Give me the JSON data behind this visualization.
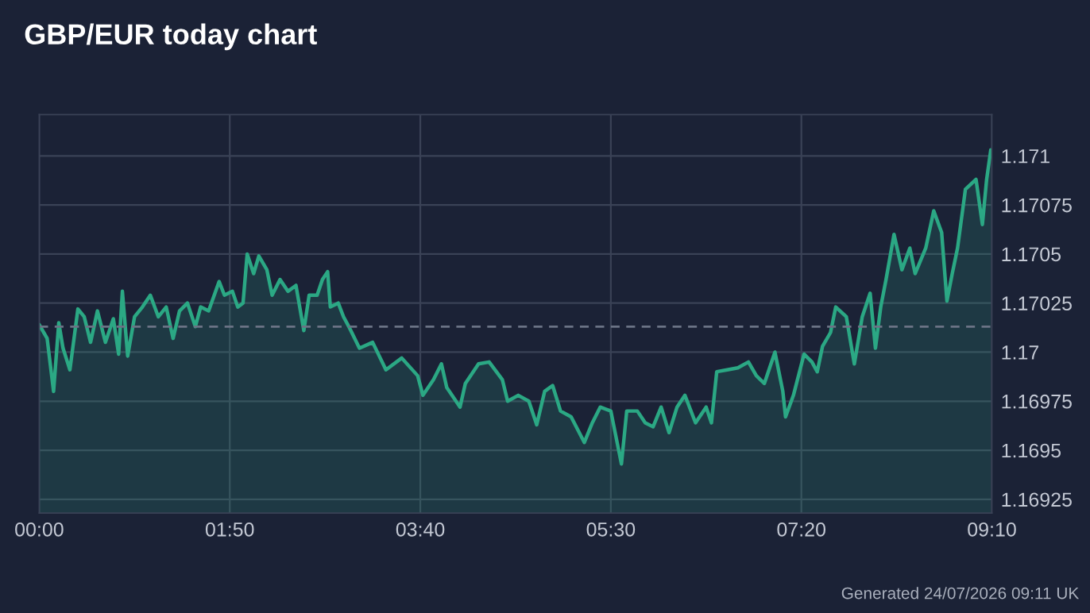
{
  "chart_data": {
    "type": "area",
    "title": "GBP/EUR today chart",
    "annotations": [
      "Generated 24/07/2026 09:11 UK"
    ],
    "x": [
      0.0,
      0.076,
      0.138,
      0.188,
      0.229,
      0.295,
      0.372,
      0.433,
      0.494,
      0.56,
      0.637,
      0.713,
      0.764,
      0.8,
      0.851,
      0.917,
      0.993,
      1.069,
      1.146,
      1.222,
      1.288,
      1.35,
      1.426,
      1.502,
      1.553,
      1.63,
      1.731,
      1.782,
      1.859,
      1.91,
      1.961,
      2.001,
      2.063,
      2.113,
      2.19,
      2.241,
      2.317,
      2.393,
      2.47,
      2.546,
      2.597,
      2.674,
      2.725,
      2.775,
      2.801,
      2.877,
      2.928,
      2.979,
      3.081,
      3.208,
      3.336,
      3.488,
      3.641,
      3.692,
      3.794,
      3.87,
      3.921,
      4.049,
      4.1,
      4.227,
      4.329,
      4.456,
      4.507,
      4.609,
      4.711,
      4.787,
      4.863,
      4.94,
      5.016,
      5.118,
      5.245,
      5.322,
      5.398,
      5.5,
      5.602,
      5.653,
      5.755,
      5.831,
      5.907,
      5.984,
      6.06,
      6.137,
      6.213,
      6.315,
      6.417,
      6.468,
      6.519,
      6.62,
      6.722,
      6.824,
      6.9,
      6.977,
      7.079,
      7.155,
      7.181,
      7.257,
      7.359,
      7.435,
      7.486,
      7.537,
      7.614,
      7.664,
      7.766,
      7.843,
      7.919,
      7.995,
      8.046,
      8.097,
      8.148,
      8.225,
      8.301,
      8.377,
      8.428,
      8.53,
      8.607,
      8.683,
      8.734,
      8.785,
      8.836,
      8.912,
      9.014,
      9.075,
      9.116,
      9.156
    ],
    "series": [
      {
        "color": "#2ba884",
        "values": [
          1.17014,
          1.17007,
          1.1698,
          1.17015,
          1.17002,
          1.16991,
          1.17022,
          1.17018,
          1.17005,
          1.17021,
          1.17005,
          1.17017,
          1.16999,
          1.17031,
          1.16998,
          1.17018,
          1.17023,
          1.17029,
          1.17018,
          1.17023,
          1.17007,
          1.17021,
          1.17025,
          1.17013,
          1.17023,
          1.17021,
          1.17036,
          1.17029,
          1.17031,
          1.17023,
          1.17025,
          1.1705,
          1.1704,
          1.17049,
          1.17042,
          1.17029,
          1.17037,
          1.17031,
          1.17034,
          1.17011,
          1.17029,
          1.17029,
          1.17037,
          1.17041,
          1.17023,
          1.17025,
          1.17018,
          1.17013,
          1.17002,
          1.17005,
          1.16991,
          1.16997,
          1.16988,
          1.16978,
          1.16986,
          1.16994,
          1.16982,
          1.16972,
          1.16984,
          1.16994,
          1.16995,
          1.16986,
          1.16975,
          1.16978,
          1.16975,
          1.16963,
          1.1698,
          1.16983,
          1.1697,
          1.16967,
          1.16954,
          1.16964,
          1.16972,
          1.1697,
          1.16943,
          1.1697,
          1.1697,
          1.16964,
          1.16962,
          1.16972,
          1.16959,
          1.16972,
          1.16978,
          1.16964,
          1.16972,
          1.16964,
          1.1699,
          1.16991,
          1.16992,
          1.16995,
          1.16988,
          1.16984,
          1.17,
          1.1698,
          1.16967,
          1.16978,
          1.16999,
          1.16995,
          1.1699,
          1.17003,
          1.1701,
          1.17023,
          1.17018,
          1.16994,
          1.17018,
          1.1703,
          1.17002,
          1.17023,
          1.17037,
          1.1706,
          1.17042,
          1.17053,
          1.1704,
          1.17053,
          1.17072,
          1.17061,
          1.17026,
          1.1704,
          1.17053,
          1.17083,
          1.17088,
          1.17065,
          1.17088,
          1.17103
        ]
      }
    ],
    "xlim": [
      0,
      9.16667
    ],
    "xticks": [
      {
        "value": 0,
        "label": "00:00"
      },
      {
        "value": 1.83333,
        "label": "01:50"
      },
      {
        "value": 3.66667,
        "label": "03:40"
      },
      {
        "value": 5.5,
        "label": "05:30"
      },
      {
        "value": 7.33333,
        "label": "07:20"
      },
      {
        "value": 9.16667,
        "label": "09:10"
      }
    ],
    "ylim": [
      1.16918,
      1.17121
    ],
    "yticks": [
      1.16925,
      1.1695,
      1.16975,
      1.17,
      1.17025,
      1.1705,
      1.17075,
      1.171
    ],
    "ref_lines": [
      {
        "axis": "y",
        "value": 1.17013,
        "color": "#6b7385",
        "line_style": "dashed"
      }
    ],
    "grid": true
  }
}
